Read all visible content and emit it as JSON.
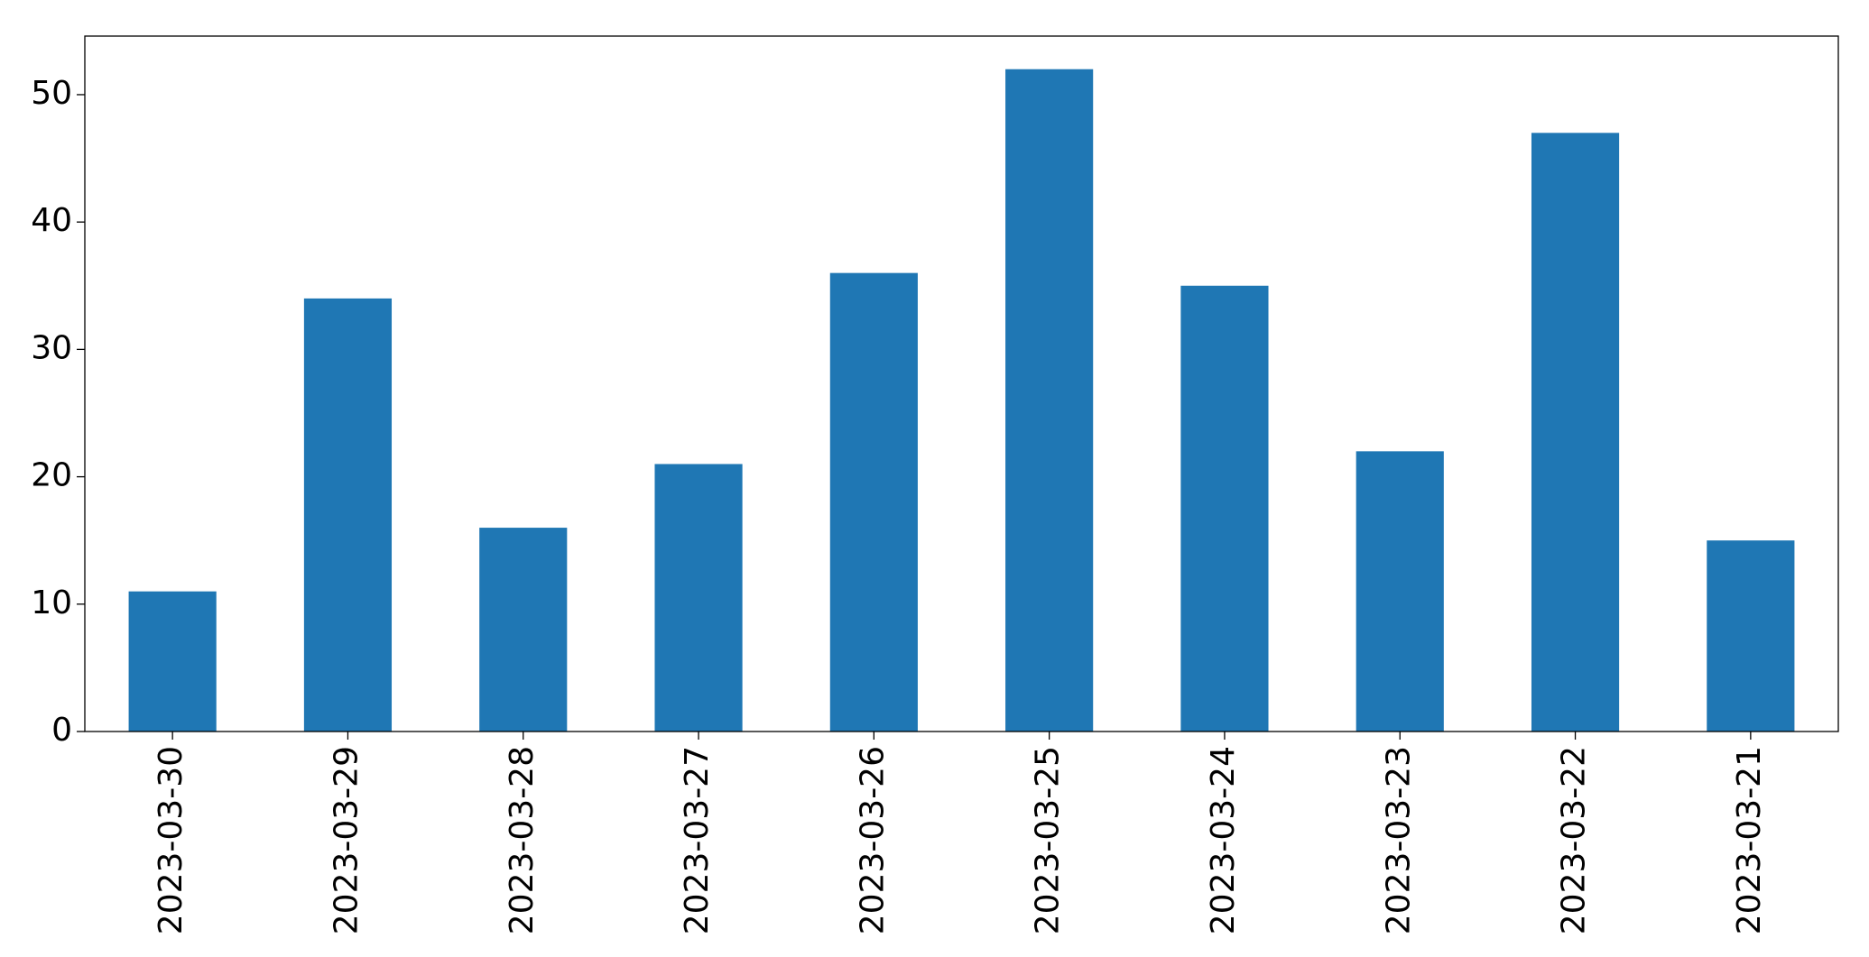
{
  "chart_data": {
    "type": "bar",
    "categories": [
      "2023-03-30",
      "2023-03-29",
      "2023-03-28",
      "2023-03-27",
      "2023-03-26",
      "2023-03-25",
      "2023-03-24",
      "2023-03-23",
      "2023-03-22",
      "2023-03-21"
    ],
    "values": [
      11,
      34,
      16,
      21,
      36,
      52,
      35,
      22,
      47,
      15
    ],
    "color": "#1f77b4",
    "ylim": [
      0,
      54.6
    ],
    "yticks": [
      0,
      10,
      20,
      30,
      40,
      50
    ],
    "grid": false
  }
}
